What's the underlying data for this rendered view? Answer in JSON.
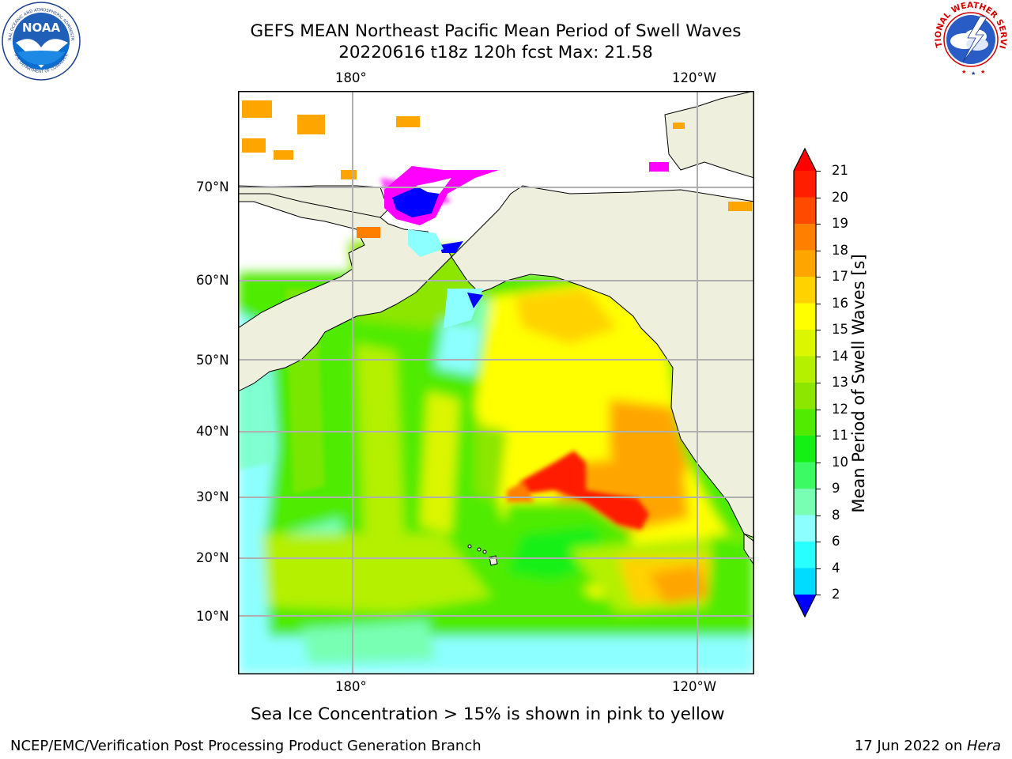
{
  "title": {
    "line1": "GEFS MEAN Northeast Pacific Mean Period of Swell Waves",
    "line2": "20220616 t18z 120h fcst   Max: 21.58"
  },
  "map": {
    "top_lon_labels": [
      "180°",
      "120°W"
    ],
    "bottom_lon_labels": [
      "180°",
      "120°W"
    ],
    "lat_labels": [
      "70°N",
      "60°N",
      "50°N",
      "40°N",
      "30°N",
      "20°N",
      "10°N"
    ]
  },
  "colorbar": {
    "label": "Mean Period of Swell Waves [s]",
    "ticks": [
      "21",
      "20",
      "19",
      "18",
      "17",
      "16",
      "15",
      "14",
      "13",
      "12",
      "11",
      "10",
      "9",
      "8",
      "6",
      "4",
      "2"
    ],
    "colors": [
      "#ff1e00",
      "#ff4a00",
      "#ff7f00",
      "#ffa500",
      "#ffd200",
      "#ffff00",
      "#dcf500",
      "#b4f000",
      "#8ce600",
      "#50eb00",
      "#14f014",
      "#3cfa64",
      "#78ffb4",
      "#8cffff",
      "#28ffff",
      "#00dcff",
      "#0096ff"
    ],
    "triangle_top_color": "#ff0000",
    "triangle_bottom_color": "#0000ff"
  },
  "caption": "Sea Ice Concentration > 15% is shown in pink to yellow",
  "footer": {
    "left": "NCEP/EMC/Verification Post Processing Product Generation Branch",
    "right_prefix": "17 Jun 2022 on ",
    "right_host": "Hera"
  },
  "logos": {
    "noaa": {
      "text": "NOAA",
      "ring_top": "NATIONAL OCEANIC AND ATMOSPHERIC ADMINISTRATION",
      "ring_bottom": "U.S. DEPARTMENT OF COMMERCE"
    },
    "nws": {
      "ring": "NATIONAL WEATHER SERVICE"
    }
  }
}
